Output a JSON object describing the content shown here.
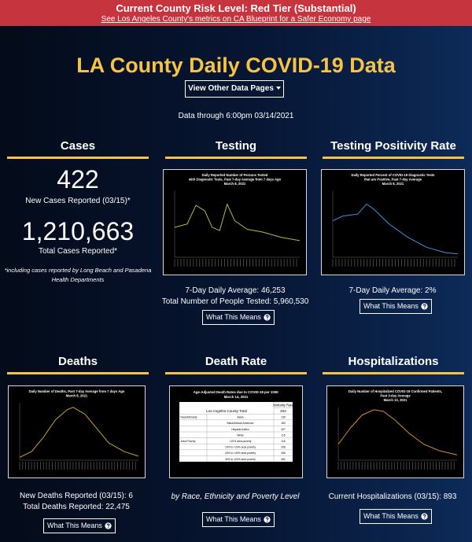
{
  "banner": {
    "title": "Current County Risk Level: Red Tier (Substantial)",
    "link": "See Los Angeles County's metrics on CA Blueprint for a Safer Economy page"
  },
  "header": {
    "title": "LA County Daily COVID-19 Data",
    "button": "View Other Data Pages",
    "data_through": "Data through 6:00pm 03/14/2021"
  },
  "cases": {
    "heading": "Cases",
    "new_value": "422",
    "new_label": "New Cases Reported (03/15)*",
    "total_value": "1,210,663",
    "total_label": "Total Cases Reported*",
    "footnote": "*including cases reported by Long Beach and Pasadena Health Departments"
  },
  "testing": {
    "heading": "Testing",
    "chart_title": [
      "Daily Reported Number of Persons Tested",
      "with Diagnostic Tests, Past 7-day Average from 7 days Ago",
      "March 8, 2021"
    ],
    "lines": [
      "7-Day Daily Average: 46,253",
      "Total Number of People Tested: 5,960,530"
    ],
    "button": "What This Means"
  },
  "positivity": {
    "heading": "Testing Positivity Rate",
    "chart_title": [
      "Daily Reported Percent of COVID-19 Diagnostic Tests",
      "that are Positive, Past 7-day Average",
      "March 8, 2021"
    ],
    "lines": [
      "7-Day Daily Average: 2%"
    ],
    "button": "What This Means"
  },
  "deaths": {
    "heading": "Deaths",
    "chart_title": [
      "Daily Number of Deaths, Past 7-day Average from 7 days Ago",
      "March 8, 2021"
    ],
    "lines": [
      "New Deaths Reported (03/15): 6",
      "Total Deaths Reported: 22,475"
    ],
    "button": "What This Means"
  },
  "death_rate": {
    "heading": "Death Rate",
    "table": {
      "title": "Age-Adjusted Death Rates due to COVID-19 per 100K",
      "date": "March 14, 2021",
      "column": "Mortality Rate",
      "total_label": "Los Angeles County Total",
      "total": "204",
      "groups": [
        {
          "name": "Race/Ethnicity",
          "rows": [
            [
              "Asian",
              "139"
            ],
            [
              "Black/African American",
              "183"
            ],
            [
              "Hispanic/Latino",
              "307"
            ],
            [
              "White",
              "115"
            ]
          ]
        },
        {
          "name": "Area Poverty",
          "rows": [
            [
              "<10% area poverty",
              "118"
            ],
            [
              "10% to <20% area poverty",
              "208"
            ],
            [
              "20% to <30% area poverty",
              "266"
            ],
            [
              "30% to 100% area poverty",
              "382"
            ]
          ]
        }
      ]
    },
    "lines": [
      "by Race, Ethnicity and Poverty Level"
    ],
    "button": "What This Means"
  },
  "hospitalizations": {
    "heading": "Hospitalizations",
    "chart_title": [
      "Daily Number of Hospitalized COVID-19 Confirmed Patients,",
      "Past 3-day Average",
      "March 13, 2021"
    ],
    "lines": [
      "Current Hospitalizations (03/15): 893"
    ],
    "button": "What This Means"
  }
}
